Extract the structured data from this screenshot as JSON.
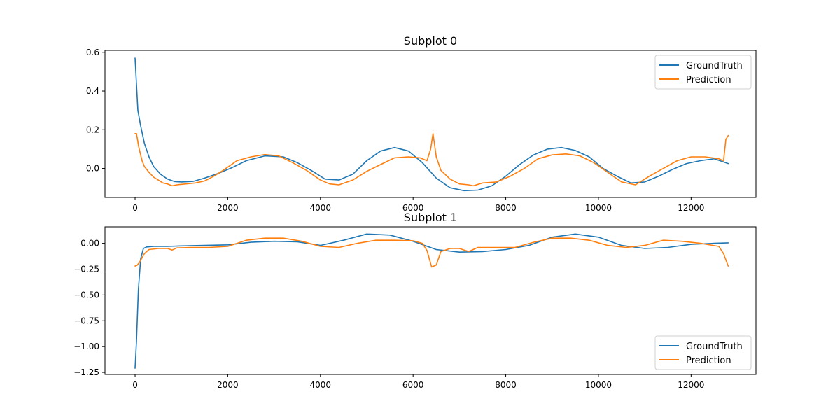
{
  "chart_data": [
    {
      "type": "line",
      "title": "Subplot 0",
      "xlim": [
        -650,
        13400
      ],
      "ylim": [
        -0.15,
        0.61
      ],
      "xticks": [
        0,
        2000,
        4000,
        6000,
        8000,
        10000,
        12000
      ],
      "xtick_labels": [
        "0",
        "2000",
        "4000",
        "6000",
        "8000",
        "10000",
        "12000"
      ],
      "yticks": [
        0.0,
        0.2,
        0.4,
        0.6
      ],
      "ytick_labels": [
        "0.0",
        "0.2",
        "0.4",
        "0.6"
      ],
      "grid": false,
      "legend_position": "top-right",
      "series": [
        {
          "name": "GroundTruth",
          "color": "#1f77b4",
          "x": [
            0,
            60,
            120,
            200,
            300,
            400,
            550,
            700,
            850,
            1000,
            1250,
            1500,
            1800,
            2100,
            2400,
            2800,
            3200,
            3500,
            3800,
            4100,
            4400,
            4700,
            5000,
            5300,
            5600,
            5900,
            6200,
            6500,
            6800,
            7100,
            7400,
            7700,
            8000,
            8300,
            8600,
            8900,
            9200,
            9500,
            9800,
            10100,
            10400,
            10700,
            11000,
            11300,
            11600,
            11900,
            12200,
            12500,
            12800
          ],
          "y": [
            0.57,
            0.3,
            0.22,
            0.13,
            0.06,
            0.01,
            -0.03,
            -0.055,
            -0.068,
            -0.07,
            -0.067,
            -0.05,
            -0.025,
            0.005,
            0.04,
            0.065,
            0.06,
            0.03,
            -0.01,
            -0.055,
            -0.06,
            -0.03,
            0.04,
            0.09,
            0.108,
            0.09,
            0.03,
            -0.05,
            -0.1,
            -0.115,
            -0.112,
            -0.09,
            -0.04,
            0.02,
            0.07,
            0.1,
            0.108,
            0.093,
            0.06,
            0.0,
            -0.04,
            -0.075,
            -0.07,
            -0.04,
            -0.005,
            0.025,
            0.04,
            0.05,
            0.025
          ]
        },
        {
          "name": "Prediction",
          "color": "#ff7f0e",
          "x": [
            0,
            30,
            80,
            150,
            200,
            300,
            400,
            500,
            600,
            700,
            800,
            900,
            1100,
            1300,
            1500,
            1700,
            1900,
            2200,
            2500,
            2800,
            3100,
            3400,
            3700,
            4000,
            4200,
            4400,
            4700,
            5000,
            5300,
            5600,
            5900,
            6150,
            6300,
            6380,
            6430,
            6500,
            6600,
            6800,
            7000,
            7200,
            7300,
            7500,
            7800,
            8100,
            8400,
            8700,
            9000,
            9300,
            9600,
            9900,
            10200,
            10500,
            10800,
            11100,
            11400,
            11700,
            12000,
            12300,
            12600,
            12700,
            12750,
            12800
          ],
          "y": [
            0.18,
            0.18,
            0.11,
            0.04,
            0.01,
            -0.02,
            -0.045,
            -0.06,
            -0.075,
            -0.08,
            -0.09,
            -0.085,
            -0.08,
            -0.075,
            -0.065,
            -0.04,
            -0.01,
            0.04,
            0.06,
            0.072,
            0.065,
            0.03,
            -0.01,
            -0.06,
            -0.08,
            -0.085,
            -0.06,
            -0.015,
            0.02,
            0.055,
            0.06,
            0.055,
            0.04,
            0.1,
            0.18,
            0.06,
            -0.01,
            -0.055,
            -0.08,
            -0.085,
            -0.09,
            -0.075,
            -0.07,
            -0.04,
            0.0,
            0.05,
            0.07,
            0.075,
            0.065,
            0.03,
            -0.02,
            -0.07,
            -0.085,
            -0.04,
            0.0,
            0.04,
            0.06,
            0.06,
            0.05,
            0.04,
            0.15,
            0.17
          ]
        }
      ]
    },
    {
      "type": "line",
      "title": "Subplot 1",
      "xlim": [
        -650,
        13400
      ],
      "ylim": [
        -1.27,
        0.16
      ],
      "xticks": [
        0,
        2000,
        4000,
        6000,
        8000,
        10000,
        12000
      ],
      "xtick_labels": [
        "0",
        "2000",
        "4000",
        "6000",
        "8000",
        "10000",
        "12000"
      ],
      "yticks": [
        -1.25,
        -1.0,
        -0.75,
        -0.5,
        -0.25,
        0.0
      ],
      "ytick_labels": [
        "−1.25",
        "−1.00",
        "−0.75",
        "−0.50",
        "−0.25",
        "0.00"
      ],
      "grid": false,
      "legend_position": "bottom-right",
      "series": [
        {
          "name": "GroundTruth",
          "color": "#1f77b4",
          "x": [
            0,
            30,
            70,
            120,
            180,
            250,
            400,
            700,
            1000,
            1500,
            2000,
            2500,
            3000,
            3500,
            4000,
            4500,
            5000,
            5500,
            6000,
            6500,
            7000,
            7500,
            8000,
            8500,
            9000,
            9500,
            10000,
            10500,
            11000,
            11500,
            12000,
            12500,
            12800
          ],
          "y": [
            -1.21,
            -0.95,
            -0.45,
            -0.15,
            -0.05,
            -0.035,
            -0.03,
            -0.03,
            -0.025,
            -0.02,
            -0.015,
            0.01,
            0.02,
            0.015,
            -0.02,
            0.03,
            0.09,
            0.08,
            0.02,
            -0.06,
            -0.085,
            -0.08,
            -0.06,
            -0.02,
            0.06,
            0.09,
            0.06,
            -0.02,
            -0.05,
            -0.04,
            -0.01,
            0.0,
            0.005
          ]
        },
        {
          "name": "Prediction",
          "color": "#ff7f0e",
          "x": [
            0,
            50,
            100,
            200,
            300,
            500,
            700,
            800,
            900,
            1200,
            1600,
            2000,
            2400,
            2800,
            3200,
            3600,
            4000,
            4400,
            4800,
            5200,
            5600,
            6000,
            6200,
            6300,
            6400,
            6500,
            6600,
            6800,
            7000,
            7200,
            7400,
            7800,
            8200,
            8600,
            9000,
            9400,
            9800,
            10200,
            10600,
            11000,
            11400,
            11800,
            12200,
            12600,
            12700,
            12800
          ],
          "y": [
            -0.22,
            -0.21,
            -0.18,
            -0.1,
            -0.06,
            -0.05,
            -0.05,
            -0.065,
            -0.045,
            -0.04,
            -0.04,
            -0.03,
            0.03,
            0.05,
            0.05,
            0.02,
            -0.03,
            -0.04,
            0.0,
            0.03,
            0.03,
            0.025,
            0.0,
            -0.07,
            -0.23,
            -0.21,
            -0.08,
            -0.05,
            -0.05,
            -0.08,
            -0.04,
            -0.04,
            -0.04,
            0.01,
            0.05,
            0.05,
            0.03,
            -0.02,
            -0.04,
            -0.02,
            0.03,
            0.02,
            0.0,
            -0.03,
            -0.1,
            -0.22
          ]
        }
      ]
    }
  ]
}
